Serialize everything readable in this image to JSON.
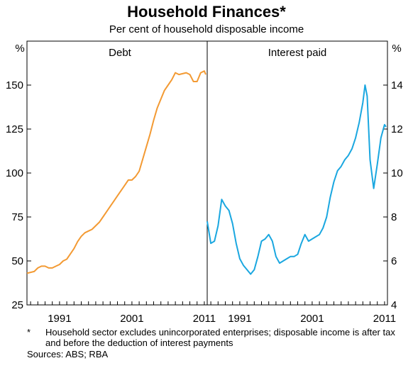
{
  "header": {
    "title": "Household Finances*",
    "subtitle": "Per cent of household disposable income"
  },
  "footnote": {
    "mark": "*",
    "text": "Household sector excludes unincorporated enterprises; disposable income is after tax and before the deduction of interest payments",
    "sources": "Sources: ABS; RBA"
  },
  "colors": {
    "debt": "#f39a33",
    "interest": "#1aa7e0"
  },
  "chart_data": [
    {
      "type": "line",
      "title": "Debt",
      "ylabel": "%",
      "ylim": [
        25,
        175
      ],
      "yticks": [
        25,
        50,
        75,
        100,
        125,
        150
      ],
      "xlim": [
        1986.5,
        2011.4
      ],
      "xticks": [
        "1991",
        "2001",
        "2011"
      ],
      "series": [
        {
          "x": [
            1986.5,
            1987.5,
            1988.0,
            1988.5,
            1989.0,
            1989.5,
            1990.0,
            1990.5,
            1991.0,
            1991.5,
            1992.0,
            1992.5,
            1993.0,
            1993.5,
            1994.0,
            1994.5,
            1995.0,
            1995.5,
            1996.0,
            1996.5,
            1997.0,
            1997.5,
            1998.0,
            1998.5,
            1999.0,
            1999.5,
            2000.0,
            2000.5,
            2001.0,
            2001.5,
            2002.0,
            2002.5,
            2003.0,
            2003.5,
            2004.0,
            2004.5,
            2005.0,
            2005.5,
            2006.0,
            2006.5,
            2007.0,
            2007.5,
            2008.0,
            2008.5,
            2009.0,
            2009.5,
            2010.0,
            2010.5,
            2011.0,
            2011.2
          ],
          "values": [
            43,
            44,
            46,
            47,
            47,
            46,
            46,
            47,
            48,
            50,
            51,
            54,
            57,
            61,
            64,
            66,
            67,
            68,
            70,
            72,
            75,
            78,
            81,
            84,
            87,
            90,
            93,
            96,
            96,
            98,
            101,
            108,
            115,
            122,
            130,
            137,
            142,
            147,
            150,
            153,
            157,
            156,
            156.5,
            157,
            156,
            152,
            152,
            157,
            158,
            156
          ]
        }
      ]
    },
    {
      "type": "line",
      "title": "Interest paid",
      "ylabel": "%",
      "ylim": [
        4,
        16
      ],
      "yticks": [
        4,
        6,
        8,
        10,
        12,
        14
      ],
      "xlim": [
        1986.5,
        2011.4
      ],
      "xticks": [
        "1991",
        "2001",
        "2011"
      ],
      "series": [
        {
          "x": [
            1986.5,
            1987.0,
            1987.5,
            1988.0,
            1988.5,
            1989.0,
            1989.5,
            1990.0,
            1990.5,
            1991.0,
            1991.5,
            1992.0,
            1992.5,
            1993.0,
            1993.5,
            1994.0,
            1994.5,
            1995.0,
            1995.5,
            1996.0,
            1996.5,
            1997.0,
            1997.5,
            1998.0,
            1998.5,
            1999.0,
            1999.5,
            2000.0,
            2000.5,
            2001.0,
            2001.5,
            2002.0,
            2002.5,
            2003.0,
            2003.5,
            2004.0,
            2004.5,
            2005.0,
            2005.5,
            2006.0,
            2006.5,
            2007.0,
            2007.5,
            2008.0,
            2008.3,
            2008.6,
            2009.0,
            2009.5,
            2010.0,
            2010.5,
            2011.0,
            2011.2
          ],
          "values": [
            7.8,
            6.8,
            6.9,
            7.6,
            8.8,
            8.5,
            8.3,
            7.7,
            6.8,
            6.1,
            5.8,
            5.6,
            5.4,
            5.6,
            6.2,
            6.9,
            7.0,
            7.2,
            6.9,
            6.2,
            5.9,
            6.0,
            6.1,
            6.2,
            6.2,
            6.3,
            6.8,
            7.2,
            6.9,
            7.0,
            7.1,
            7.2,
            7.5,
            8.0,
            8.9,
            9.6,
            10.1,
            10.3,
            10.6,
            10.8,
            11.1,
            11.6,
            12.3,
            13.2,
            14.0,
            13.5,
            10.6,
            9.3,
            10.4,
            11.6,
            12.2,
            12.1
          ]
        }
      ]
    }
  ]
}
